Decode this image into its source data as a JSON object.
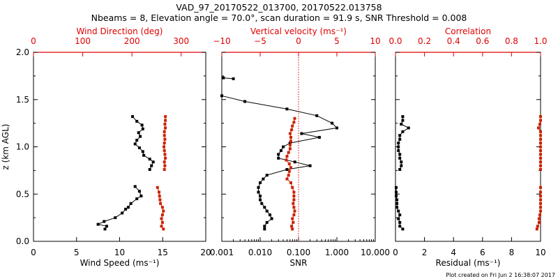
{
  "title": "VAD_97_20170522_013700, 20170522.013758",
  "subtitle": "Nbeams = 8, Elevation angle = 70.0°, scan duration = 91.9 s, SNR Threshold = 0.008",
  "footer": "Plot created on Fri Jun  2 16:38:07 2017",
  "colors": {
    "black": "#000000",
    "red": "#cc2200",
    "axis_red": "#e00000"
  },
  "chart_data": [
    {
      "type": "line",
      "panel": "left",
      "xlabel": "Wind Speed (ms⁻¹)",
      "xlim": [
        0,
        20
      ],
      "xticks": [
        "0",
        "5",
        "10",
        "15",
        "20"
      ],
      "top_xlabel": "Wind Direction (deg)",
      "top_xlim": [
        0,
        350
      ],
      "top_xticks": [
        "0",
        "100",
        "200",
        "300"
      ],
      "ylabel": "z (km AGL)",
      "ylim": [
        0.0,
        2.0
      ],
      "yticks": [
        "0.0",
        "0.5",
        "1.0",
        "1.5",
        "2.0"
      ],
      "series": [
        {
          "color": "black",
          "axis": "bottom",
          "segments": [
            [
              [
                8.3,
                0.13
              ],
              [
                8.5,
                0.16
              ],
              [
                7.5,
                0.18
              ],
              [
                8.2,
                0.21
              ],
              [
                9.5,
                0.25
              ],
              [
                10.3,
                0.3
              ],
              [
                10.7,
                0.34
              ],
              [
                11.0,
                0.36
              ],
              [
                11.3,
                0.4
              ],
              [
                12.0,
                0.45
              ],
              [
                12.5,
                0.48
              ],
              [
                12.3,
                0.53
              ],
              [
                11.8,
                0.58
              ]
            ],
            [
              [
                13.5,
                0.76
              ],
              [
                13.7,
                0.8
              ],
              [
                13.9,
                0.84
              ],
              [
                13.5,
                0.87
              ],
              [
                12.8,
                0.91
              ],
              [
                12.7,
                0.95
              ],
              [
                12.3,
                0.99
              ],
              [
                11.8,
                1.03
              ],
              [
                12.0,
                1.07
              ],
              [
                12.4,
                1.11
              ],
              [
                12.2,
                1.15
              ],
              [
                12.7,
                1.19
              ],
              [
                12.6,
                1.23
              ],
              [
                12.0,
                1.27
              ],
              [
                11.5,
                1.32
              ]
            ]
          ]
        },
        {
          "color": "red",
          "axis": "top",
          "segments": [
            [
              [
                264,
                0.13
              ],
              [
                260,
                0.16
              ],
              [
                262,
                0.2
              ],
              [
                260,
                0.24
              ],
              [
                262,
                0.28
              ],
              [
                264,
                0.32
              ],
              [
                262,
                0.36
              ],
              [
                258,
                0.4
              ],
              [
                257,
                0.44
              ],
              [
                256,
                0.48
              ],
              [
                255,
                0.52
              ],
              [
                252,
                0.57
              ]
            ],
            [
              [
                266,
                0.76
              ],
              [
                267,
                0.8
              ],
              [
                266,
                0.84
              ],
              [
                268,
                0.88
              ],
              [
                267,
                0.92
              ],
              [
                266,
                0.96
              ],
              [
                265,
                1.0
              ],
              [
                266,
                1.04
              ],
              [
                267,
                1.08
              ],
              [
                266,
                1.12
              ],
              [
                266,
                1.16
              ],
              [
                268,
                1.2
              ],
              [
                267,
                1.24
              ],
              [
                268,
                1.28
              ],
              [
                268,
                1.32
              ]
            ]
          ]
        }
      ]
    },
    {
      "type": "line",
      "panel": "middle",
      "xlabel": "SNR",
      "xscale": "log",
      "xlim": [
        0.001,
        10.0
      ],
      "xticks": [
        "0.001",
        "0.010",
        "0.100",
        "1.000",
        "10.000"
      ],
      "top_xlabel": "Vertical velocity (ms⁻¹)",
      "top_xlim": [
        -10,
        10
      ],
      "top_xticks": [
        "−10",
        "−5",
        "0",
        "5",
        "10"
      ],
      "ylim": [
        0.0,
        2.0
      ],
      "reference_line": {
        "axis": "top",
        "x": 0,
        "style": "dotted",
        "color": "red"
      },
      "series": [
        {
          "color": "black",
          "axis": "bottom",
          "segments": [
            [
              [
                0.013,
                0.13
              ],
              [
                0.013,
                0.16
              ],
              [
                0.015,
                0.2
              ],
              [
                0.02,
                0.24
              ],
              [
                0.018,
                0.28
              ],
              [
                0.015,
                0.32
              ],
              [
                0.013,
                0.36
              ],
              [
                0.011,
                0.4
              ],
              [
                0.01,
                0.44
              ],
              [
                0.01,
                0.48
              ],
              [
                0.009,
                0.52
              ],
              [
                0.009,
                0.57
              ],
              [
                0.01,
                0.62
              ],
              [
                0.012,
                0.66
              ],
              [
                0.015,
                0.7
              ],
              [
                0.05,
                0.76
              ],
              [
                0.2,
                0.8
              ],
              [
                0.08,
                0.84
              ],
              [
                0.03,
                0.88
              ],
              [
                0.03,
                0.92
              ],
              [
                0.035,
                0.96
              ],
              [
                0.04,
                1.0
              ],
              [
                0.06,
                1.04
              ],
              [
                0.35,
                1.1
              ],
              [
                0.12,
                1.14
              ],
              [
                1.0,
                1.2
              ],
              [
                0.75,
                1.25
              ],
              [
                0.3,
                1.33
              ],
              [
                0.05,
                1.4
              ],
              [
                0.004,
                1.48
              ],
              [
                0.001,
                1.54
              ]
            ],
            [
              [
                0.002,
                1.72
              ],
              [
                0.0011,
                1.73
              ]
            ]
          ]
        },
        {
          "color": "red",
          "axis": "top",
          "segments": [
            [
              [
                -0.8,
                0.13
              ],
              [
                -0.9,
                0.16
              ],
              [
                -0.7,
                0.2
              ],
              [
                -0.8,
                0.24
              ],
              [
                -0.6,
                0.28
              ],
              [
                -0.5,
                0.32
              ],
              [
                -0.6,
                0.36
              ],
              [
                -0.7,
                0.4
              ],
              [
                -0.6,
                0.44
              ],
              [
                -0.6,
                0.48
              ],
              [
                -0.6,
                0.52
              ],
              [
                -0.8,
                0.57
              ],
              [
                -1.0,
                0.62
              ],
              [
                -1.5,
                0.66
              ],
              [
                -1.3,
                0.7
              ],
              [
                -1.2,
                0.74
              ],
              [
                -1.0,
                0.78
              ],
              [
                -1.2,
                0.82
              ],
              [
                -1.6,
                0.86
              ],
              [
                -1.5,
                0.9
              ],
              [
                -1.3,
                0.94
              ],
              [
                -1.1,
                0.98
              ],
              [
                -1.1,
                1.02
              ],
              [
                -1.0,
                1.06
              ],
              [
                -1.0,
                1.1
              ],
              [
                -1.1,
                1.14
              ],
              [
                -0.9,
                1.18
              ],
              [
                -0.8,
                1.22
              ],
              [
                -0.6,
                1.26
              ],
              [
                -0.5,
                1.3
              ]
            ]
          ]
        }
      ]
    },
    {
      "type": "line",
      "panel": "right",
      "xlabel": "Residual (ms⁻¹)",
      "xlim": [
        0,
        10
      ],
      "xticks": [
        "0",
        "2",
        "4",
        "6",
        "8",
        "10"
      ],
      "top_xlabel": "Correlation",
      "top_xlim": [
        0,
        1.0
      ],
      "top_xticks": [
        "0.0",
        "0.2",
        "0.4",
        "0.6",
        "0.8",
        "1.0"
      ],
      "ylim": [
        0.0,
        2.0
      ],
      "series": [
        {
          "color": "black",
          "axis": "bottom",
          "segments": [
            [
              [
                0.5,
                0.13
              ],
              [
                0.3,
                0.16
              ],
              [
                0.3,
                0.2
              ],
              [
                0.2,
                0.24
              ],
              [
                0.3,
                0.28
              ],
              [
                0.2,
                0.32
              ],
              [
                0.1,
                0.36
              ],
              [
                0.1,
                0.4
              ],
              [
                0.1,
                0.44
              ],
              [
                0.05,
                0.48
              ],
              [
                0.05,
                0.52
              ],
              [
                0.05,
                0.57
              ]
            ],
            [
              [
                0.3,
                0.76
              ],
              [
                0.4,
                0.8
              ],
              [
                0.4,
                0.84
              ],
              [
                0.3,
                0.88
              ],
              [
                0.3,
                0.92
              ],
              [
                0.2,
                0.96
              ],
              [
                0.2,
                1.0
              ],
              [
                0.2,
                1.04
              ],
              [
                0.3,
                1.08
              ],
              [
                0.3,
                1.12
              ],
              [
                0.5,
                1.16
              ],
              [
                0.9,
                1.2
              ],
              [
                0.4,
                1.24
              ],
              [
                0.5,
                1.28
              ],
              [
                0.5,
                1.32
              ]
            ]
          ]
        },
        {
          "color": "red",
          "axis": "top",
          "segments": [
            [
              [
                0.975,
                0.13
              ],
              [
                0.98,
                0.16
              ],
              [
                0.99,
                0.2
              ],
              [
                0.99,
                0.24
              ],
              [
                0.995,
                0.28
              ],
              [
                1.0,
                0.32
              ],
              [
                1.0,
                0.36
              ],
              [
                1.0,
                0.4
              ],
              [
                1.0,
                0.44
              ],
              [
                1.0,
                0.48
              ],
              [
                1.0,
                0.52
              ],
              [
                1.0,
                0.57
              ]
            ],
            [
              [
                1.0,
                0.76
              ],
              [
                1.0,
                0.8
              ],
              [
                1.0,
                0.84
              ],
              [
                1.0,
                0.88
              ],
              [
                1.0,
                0.92
              ],
              [
                1.0,
                0.96
              ],
              [
                1.0,
                1.0
              ],
              [
                1.0,
                1.04
              ],
              [
                1.0,
                1.08
              ],
              [
                1.0,
                1.12
              ],
              [
                1.0,
                1.16
              ],
              [
                0.985,
                1.2
              ],
              [
                0.995,
                1.24
              ],
              [
                1.0,
                1.28
              ],
              [
                1.0,
                1.32
              ]
            ]
          ]
        }
      ]
    }
  ]
}
